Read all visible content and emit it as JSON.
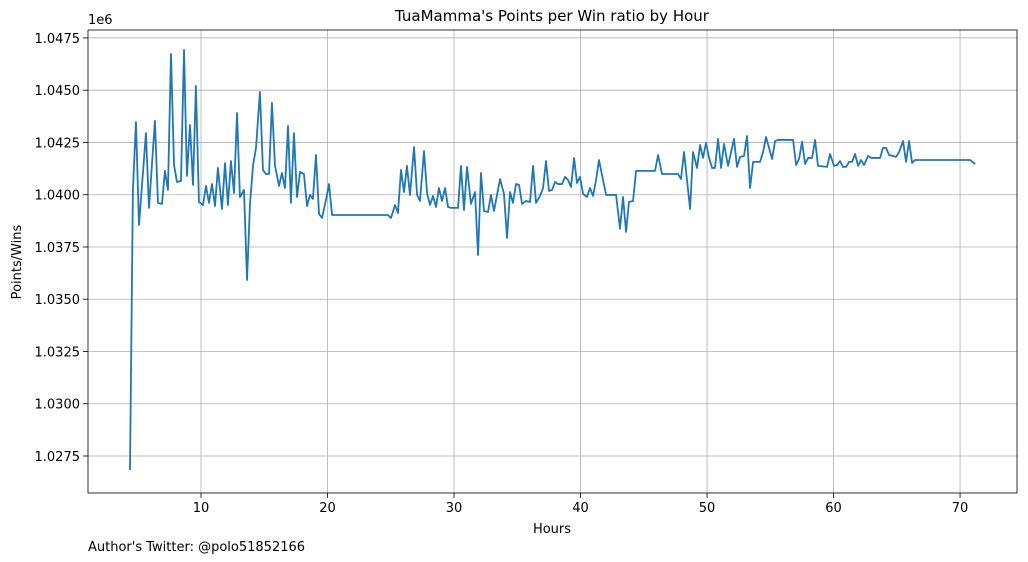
{
  "chart_data": {
    "type": "line",
    "title": "TuaMamma's Points per Win ratio by Hour",
    "x_label": "Hours",
    "y_label": "Points/Wins",
    "y_offset_label": "1e6",
    "footnote": "Author's Twitter: @polo51852166",
    "color": "#1f77b4",
    "grid": true,
    "xlim": [
      1.07,
      74.5
    ],
    "ylim": [
      1.02573,
      1.04788
    ],
    "xticks": [
      10,
      20,
      30,
      40,
      50,
      60,
      70
    ],
    "yticks": [
      1.0275,
      {
        "value": 1.03,
        "label": "1.0300"
      },
      1.0325,
      {
        "value": 1.035,
        "label": "1.0350"
      },
      1.0375,
      {
        "value": 1.04,
        "label": "1.0400"
      },
      1.0425,
      {
        "value": 1.045,
        "label": "1.0450"
      },
      1.0475
    ],
    "x": [
      4.39,
      4.62,
      4.86,
      5.1,
      5.65,
      5.89,
      6.36,
      6.6,
      6.92,
      7.15,
      7.39,
      7.63,
      7.87,
      8.1,
      8.42,
      8.66,
      8.89,
      9.13,
      9.37,
      9.6,
      9.84,
      10.16,
      10.4,
      10.63,
      10.87,
      11.11,
      11.34,
      11.66,
      11.9,
      12.13,
      12.37,
      12.61,
      12.85,
      13.08,
      13.4,
      13.64,
      13.87,
      14.11,
      14.35,
      14.66,
      14.9,
      15.14,
      15.38,
      15.61,
      15.85,
      16.17,
      16.4,
      16.64,
      16.88,
      17.11,
      17.35,
      17.59,
      17.83,
      18.14,
      18.38,
      18.62,
      18.85,
      19.09,
      19.33,
      19.57,
      19.88,
      20.12,
      20.36,
      24.78,
      25.02,
      25.34,
      25.57,
      25.81,
      26.05,
      26.28,
      26.52,
      26.84,
      27.08,
      27.31,
      27.63,
      27.87,
      28.1,
      28.34,
      28.58,
      28.81,
      29.05,
      29.29,
      29.53,
      29.76,
      30.32,
      30.55,
      30.79,
      31.03,
      31.34,
      31.66,
      31.9,
      32.13,
      32.37,
      32.69,
      32.92,
      33.16,
      33.4,
      33.64,
      33.95,
      34.19,
      34.43,
      34.66,
      34.9,
      35.14,
      35.38,
      35.69,
      36.01,
      36.25,
      36.48,
      36.8,
      37.04,
      37.27,
      37.51,
      37.75,
      37.99,
      38.22,
      38.54,
      38.77,
      39.01,
      39.25,
      39.49,
      39.72,
      39.96,
      40.2,
      40.51,
      40.75,
      40.99,
      41.23,
      41.46,
      41.78,
      42.02,
      42.25,
      42.57,
      42.81,
      43.12,
      43.36,
      43.6,
      43.83,
      44.15,
      44.39,
      45.89,
      46.13,
      46.44,
      47.71,
      47.94,
      48.18,
      48.66,
      48.89,
      49.21,
      49.45,
      49.68,
      49.92,
      50.16,
      50.4,
      50.63,
      50.87,
      51.11,
      51.34,
      51.66,
      51.9,
      52.13,
      52.37,
      52.61,
      52.92,
      53.16,
      53.4,
      53.64,
      54.19,
      54.43,
      54.66,
      54.9,
      55.14,
      55.38,
      55.61,
      56.56,
      56.8,
      57.04,
      57.27,
      57.51,
      57.75,
      57.99,
      58.3,
      58.54,
      58.77,
      59.49,
      59.72,
      60.04,
      60.28,
      60.51,
      60.75,
      60.99,
      61.23,
      61.46,
      61.7,
      61.94,
      62.17,
      62.41,
      62.73,
      62.96,
      63.68,
      63.91,
      64.15,
      64.39,
      64.94,
      65.18,
      65.49,
      65.73,
      65.97,
      66.21,
      66.44,
      70.79,
      71.19
    ],
    "values": [
      1.02683,
      1.04023,
      1.04348,
      1.03855,
      1.04295,
      1.03937,
      1.04353,
      1.03961,
      1.03956,
      1.04114,
      1.04023,
      1.04673,
      1.04142,
      1.04061,
      1.04066,
      1.04693,
      1.0409,
      1.04334,
      1.04047,
      1.0452,
      1.03965,
      1.03951,
      1.04042,
      1.03961,
      1.04051,
      1.03946,
      1.04128,
      1.03932,
      1.04151,
      1.03951,
      1.04161,
      1.04008,
      1.04391,
      1.03989,
      1.04023,
      1.03592,
      1.03951,
      1.04138,
      1.04224,
      1.04492,
      1.04118,
      1.04099,
      1.04099,
      1.04439,
      1.04138,
      1.04042,
      1.04104,
      1.04032,
      1.04329,
      1.03961,
      1.04295,
      1.03989,
      1.04109,
      1.04099,
      1.03946,
      1.03999,
      1.0398,
      1.0419,
      1.03908,
      1.03889,
      1.03975,
      1.04051,
      1.03903,
      1.03903,
      1.03889,
      1.03951,
      1.03913,
      1.04118,
      1.04013,
      1.04138,
      1.03999,
      1.04228,
      1.03999,
      1.0397,
      1.04209,
      1.04008,
      1.03951,
      1.03994,
      1.03941,
      1.04032,
      1.0397,
      1.04032,
      1.03941,
      1.03937,
      1.03937,
      1.04138,
      1.03927,
      1.04133,
      1.03956,
      1.04013,
      1.03712,
      1.04104,
      1.03922,
      1.03917,
      1.03999,
      1.03922,
      1.03999,
      1.04075,
      1.04004,
      1.03793,
      1.04013,
      1.03961,
      1.04051,
      1.04047,
      1.03956,
      1.0397,
      1.03965,
      1.04138,
      1.03961,
      1.03994,
      1.04032,
      1.04161,
      1.04018,
      1.04023,
      1.04061,
      1.04051,
      1.04051,
      1.04085,
      1.04071,
      1.04037,
      1.04176,
      1.04056,
      1.04085,
      1.04004,
      1.03989,
      1.04032,
      1.03994,
      1.04071,
      1.04166,
      1.04071,
      1.03999,
      1.03999,
      1.03999,
      1.03999,
      1.03837,
      1.03989,
      1.03822,
      1.03965,
      1.0397,
      1.04114,
      1.04114,
      1.0419,
      1.04099,
      1.04099,
      1.04075,
      1.04204,
      1.03932,
      1.04204,
      1.04128,
      1.04238,
      1.04176,
      1.04248,
      1.04176,
      1.04128,
      1.04128,
      1.04267,
      1.04128,
      1.04243,
      1.04138,
      1.04204,
      1.04267,
      1.04133,
      1.04181,
      1.04185,
      1.04281,
      1.04032,
      1.04157,
      1.04157,
      1.04204,
      1.04276,
      1.04224,
      1.04171,
      1.04257,
      1.04262,
      1.04262,
      1.04262,
      1.04142,
      1.04171,
      1.04253,
      1.04147,
      1.04176,
      1.04176,
      1.04262,
      1.04138,
      1.04133,
      1.04195,
      1.04138,
      1.04142,
      1.04161,
      1.04133,
      1.04133,
      1.04157,
      1.04157,
      1.04195,
      1.04138,
      1.04166,
      1.04142,
      1.04185,
      1.04176,
      1.04176,
      1.04224,
      1.04224,
      1.0419,
      1.04181,
      1.04204,
      1.04257,
      1.04157,
      1.04257,
      1.04152,
      1.04166,
      1.04166,
      1.04147
    ]
  }
}
